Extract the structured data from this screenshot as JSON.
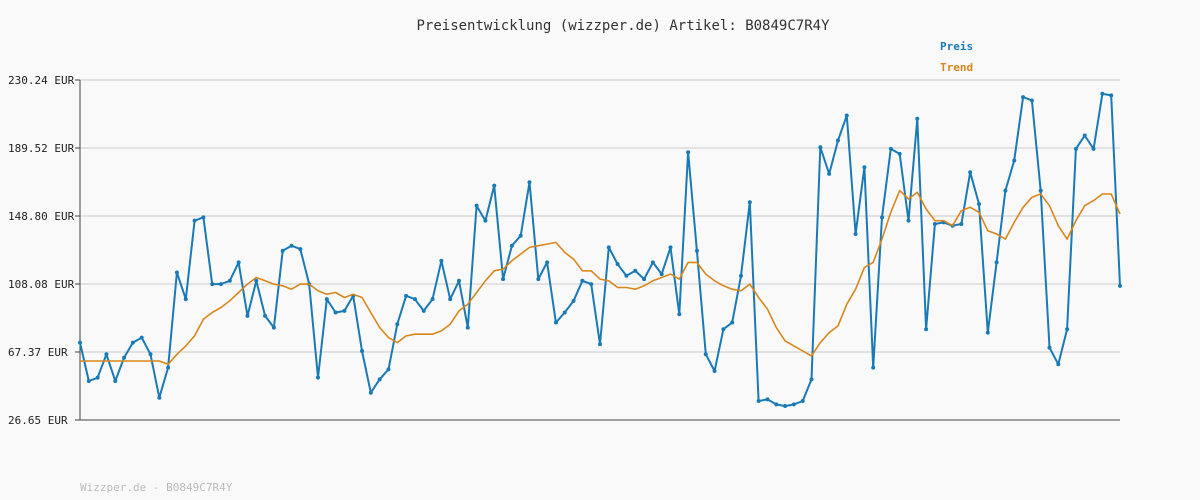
{
  "chart_data": {
    "type": "line",
    "title": "Preisentwicklung (wizzper.de) Artikel: B0849C7R4Y",
    "yticks": [
      "230.24 EUR",
      "189.52 EUR",
      "148.80 EUR",
      "108.08 EUR",
      "67.37 EUR",
      "26.65 EUR"
    ],
    "ylim": [
      26.65,
      230.24
    ],
    "grid": true,
    "legend_position": "top-right",
    "series": [
      {
        "name": "Preis",
        "color": "#1a7ab5",
        "values": [
          73,
          50,
          52,
          66,
          50,
          64,
          73,
          76,
          66,
          40,
          58,
          115,
          99,
          146,
          148,
          108,
          108,
          110,
          121,
          89,
          110,
          89,
          82,
          128,
          131,
          129,
          108,
          52,
          99,
          91,
          92,
          101,
          68,
          43,
          51,
          57,
          84,
          101,
          99,
          92,
          99,
          122,
          99,
          110,
          82,
          155,
          146,
          167,
          111,
          131,
          137,
          169,
          111,
          121,
          85,
          91,
          98,
          110,
          108,
          72,
          130,
          120,
          113,
          116,
          111,
          121,
          114,
          130,
          90,
          187,
          128,
          66,
          56,
          81,
          85,
          113,
          157,
          38,
          39,
          36,
          35,
          36,
          38,
          51,
          190,
          174,
          194,
          209,
          138,
          178,
          58,
          148,
          189,
          186,
          146,
          207,
          81,
          144,
          145,
          143,
          144,
          175,
          156,
          79,
          121,
          164,
          182,
          220,
          218,
          164,
          70,
          60,
          81,
          189,
          197,
          189,
          222,
          221,
          107
        ]
      },
      {
        "name": "Trend",
        "color": "#d9861c",
        "values": [
          62,
          62,
          62,
          62,
          62,
          62,
          62,
          62,
          62,
          62,
          60,
          66,
          71,
          77,
          87,
          91,
          94,
          98,
          103,
          108,
          112,
          110,
          108,
          107,
          105,
          108,
          108,
          104,
          102,
          103,
          100,
          102,
          100,
          91,
          82,
          76,
          73,
          77,
          78,
          78,
          78,
          80,
          84,
          92,
          96,
          103,
          110,
          116,
          117,
          122,
          126,
          130,
          131,
          132,
          133,
          127,
          123,
          116,
          116,
          111,
          110,
          106,
          106,
          105,
          107,
          110,
          112,
          114,
          111,
          121,
          121,
          114,
          110,
          107,
          105,
          104,
          108,
          100,
          93,
          82,
          74,
          71,
          68,
          65,
          73,
          79,
          83,
          96,
          105,
          118,
          121,
          135,
          151,
          164,
          159,
          163,
          153,
          146,
          146,
          143,
          152,
          154,
          151,
          140,
          138,
          135,
          145,
          154,
          160,
          162,
          155,
          143,
          135,
          146,
          155,
          158,
          162,
          162,
          150
        ]
      }
    ]
  },
  "footer": "Wizzper.de - B0849C7R4Y"
}
